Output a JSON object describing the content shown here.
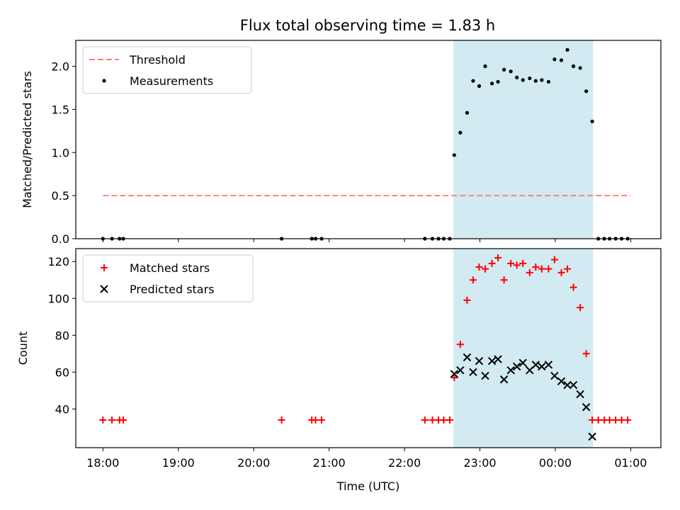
{
  "title": "Flux total observing time = 1.83 h",
  "colors": {
    "threshold": "#ff8080",
    "measurement": "#000000",
    "matched": "#ff0000",
    "predicted": "#000000",
    "highlight": "#add8e6"
  },
  "chart_data": [
    {
      "type": "scatter",
      "panel": "top",
      "ylabel": "Matched/Predicted stars",
      "ylim": [
        0,
        2.3
      ],
      "yticks": [
        0.0,
        0.5,
        1.0,
        1.5,
        2.0
      ],
      "ytick_labels": [
        "0.0",
        "0.5",
        "1.0",
        "1.5",
        "2.0"
      ],
      "legend_placement": "top-left",
      "x_unit": "hours since 18:00 UTC",
      "highlight_span": [
        4.65,
        6.5
      ],
      "threshold": {
        "name": "Threshold",
        "value": 0.5,
        "x_range": [
          0.0,
          7.0
        ]
      },
      "series": [
        {
          "name": "Measurements",
          "points": [
            [
              0.0,
              0
            ],
            [
              0.12,
              0
            ],
            [
              0.22,
              0
            ],
            [
              0.27,
              0
            ],
            [
              2.37,
              0
            ],
            [
              2.77,
              0
            ],
            [
              2.82,
              0
            ],
            [
              2.9,
              0
            ],
            [
              4.27,
              0
            ],
            [
              4.37,
              0
            ],
            [
              4.45,
              0
            ],
            [
              4.52,
              0
            ],
            [
              4.6,
              0
            ],
            [
              4.66,
              0.97
            ],
            [
              4.74,
              1.23
            ],
            [
              4.83,
              1.46
            ],
            [
              4.91,
              1.83
            ],
            [
              4.99,
              1.77
            ],
            [
              5.07,
              2.0
            ],
            [
              5.16,
              1.8
            ],
            [
              5.24,
              1.82
            ],
            [
              5.32,
              1.96
            ],
            [
              5.41,
              1.94
            ],
            [
              5.49,
              1.87
            ],
            [
              5.57,
              1.84
            ],
            [
              5.66,
              1.86
            ],
            [
              5.74,
              1.83
            ],
            [
              5.82,
              1.84
            ],
            [
              5.91,
              1.82
            ],
            [
              5.99,
              2.08
            ],
            [
              6.08,
              2.07
            ],
            [
              6.16,
              2.19
            ],
            [
              6.24,
              2.0
            ],
            [
              6.33,
              1.98
            ],
            [
              6.41,
              1.71
            ],
            [
              6.49,
              1.36
            ],
            [
              6.57,
              0
            ],
            [
              6.65,
              0
            ],
            [
              6.72,
              0
            ],
            [
              6.8,
              0
            ],
            [
              6.88,
              0
            ],
            [
              6.96,
              0
            ]
          ]
        }
      ]
    },
    {
      "type": "scatter",
      "panel": "bottom",
      "ylabel": "Count",
      "xlabel": "Time (UTC)",
      "ylim": [
        19,
        127
      ],
      "yticks": [
        40,
        60,
        80,
        100,
        120
      ],
      "ytick_labels": [
        "40",
        "60",
        "80",
        "100",
        "120"
      ],
      "xlim": [
        -0.36,
        7.4
      ],
      "xticks": [
        0,
        1,
        2,
        3,
        4,
        5,
        6,
        7
      ],
      "xtick_labels": [
        "18:00",
        "19:00",
        "20:00",
        "21:00",
        "22:00",
        "23:00",
        "00:00",
        "01:00"
      ],
      "legend_placement": "top-left",
      "highlight_span": [
        4.65,
        6.5
      ],
      "series": [
        {
          "name": "Matched stars",
          "marker": "plus",
          "points": [
            [
              0.0,
              34
            ],
            [
              0.12,
              34
            ],
            [
              0.22,
              34
            ],
            [
              0.27,
              34
            ],
            [
              2.37,
              34
            ],
            [
              2.77,
              34
            ],
            [
              2.82,
              34
            ],
            [
              2.9,
              34
            ],
            [
              4.27,
              34
            ],
            [
              4.37,
              34
            ],
            [
              4.45,
              34
            ],
            [
              4.52,
              34
            ],
            [
              4.6,
              34
            ],
            [
              4.66,
              57
            ],
            [
              4.74,
              75
            ],
            [
              4.83,
              99
            ],
            [
              4.91,
              110
            ],
            [
              4.99,
              117
            ],
            [
              5.07,
              116
            ],
            [
              5.16,
              119
            ],
            [
              5.24,
              122
            ],
            [
              5.32,
              110
            ],
            [
              5.41,
              119
            ],
            [
              5.49,
              118
            ],
            [
              5.57,
              119
            ],
            [
              5.66,
              114
            ],
            [
              5.74,
              117
            ],
            [
              5.82,
              116
            ],
            [
              5.91,
              116
            ],
            [
              5.99,
              121
            ],
            [
              6.08,
              114
            ],
            [
              6.16,
              116
            ],
            [
              6.24,
              106
            ],
            [
              6.33,
              95
            ],
            [
              6.41,
              70
            ],
            [
              6.49,
              34
            ],
            [
              6.57,
              34
            ],
            [
              6.65,
              34
            ],
            [
              6.72,
              34
            ],
            [
              6.8,
              34
            ],
            [
              6.88,
              34
            ],
            [
              6.96,
              34
            ]
          ]
        },
        {
          "name": "Predicted stars",
          "marker": "x",
          "points": [
            [
              4.66,
              59
            ],
            [
              4.74,
              61
            ],
            [
              4.83,
              68
            ],
            [
              4.91,
              60
            ],
            [
              4.99,
              66
            ],
            [
              5.07,
              58
            ],
            [
              5.16,
              66
            ],
            [
              5.24,
              67
            ],
            [
              5.32,
              56
            ],
            [
              5.41,
              61
            ],
            [
              5.49,
              63
            ],
            [
              5.57,
              65
            ],
            [
              5.66,
              61
            ],
            [
              5.74,
              64
            ],
            [
              5.82,
              63
            ],
            [
              5.91,
              64
            ],
            [
              5.99,
              58
            ],
            [
              6.08,
              55
            ],
            [
              6.16,
              53
            ],
            [
              6.24,
              53
            ],
            [
              6.33,
              48
            ],
            [
              6.41,
              41
            ],
            [
              6.49,
              25
            ]
          ]
        }
      ]
    }
  ]
}
